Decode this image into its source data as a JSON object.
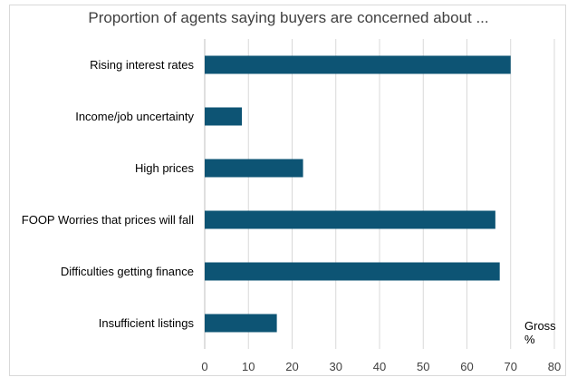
{
  "chart_data": {
    "type": "bar",
    "orientation": "horizontal",
    "title": "Proportion of agents saying buyers are concerned about ...",
    "categories": [
      "Rising interest rates",
      "Income/job uncertainty",
      "High prices",
      "FOOP Worries that prices will fall",
      "Difficulties getting finance",
      "Insufficient listings"
    ],
    "series": [
      {
        "name": "Gross %",
        "values": [
          70,
          8.5,
          22.5,
          66.5,
          67.5,
          16.5
        ]
      }
    ],
    "x_ticks": [
      0,
      10,
      20,
      30,
      40,
      50,
      60,
      70,
      80
    ],
    "xlim": [
      0,
      80
    ],
    "xlabel": "",
    "ylabel": "",
    "unit_label": [
      "Gross",
      "%"
    ],
    "grid": true,
    "bar_color": "#0d5474"
  }
}
